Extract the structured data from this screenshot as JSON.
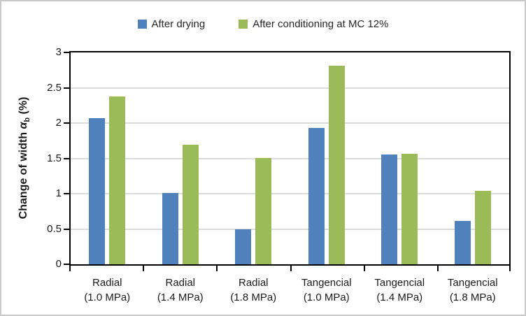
{
  "figure": {
    "background": "#ffffff",
    "border_color": "#c9c9c9"
  },
  "axis": {
    "ylabel_prefix": "Change of width ",
    "ylabel_alpha": "α",
    "ylabel_sub": "b",
    "ylabel_suffix": " (%)"
  },
  "colors": {
    "gridline": "#dcdcdc",
    "axis": "#000000",
    "series_blue": "#4F81BD",
    "series_green": "#9BBB59"
  },
  "chart_data": {
    "type": "bar",
    "title": "",
    "xlabel": "",
    "ylabel": "Change of width α_b (%)",
    "ylim": [
      0,
      3
    ],
    "grid": true,
    "legend_position": "top",
    "ytick_values": [
      0,
      0.5,
      1,
      1.5,
      2,
      2.5,
      3
    ],
    "ytick_labels": [
      "0",
      "0.5",
      "1",
      "1.5",
      "2",
      "2.5",
      "3"
    ],
    "categories": [
      {
        "line1": "Radial",
        "line2": "(1.0 MPa)"
      },
      {
        "line1": "Radial",
        "line2": "(1.4 MPa)"
      },
      {
        "line1": "Radial",
        "line2": "(1.8 MPa)"
      },
      {
        "line1": "Tangencial",
        "line2": "(1.0 MPa)"
      },
      {
        "line1": "Tangencial",
        "line2": "(1.4 MPa)"
      },
      {
        "line1": "Tangencial",
        "line2": "(1.8 MPa)"
      }
    ],
    "series": [
      {
        "name": "After drying",
        "color": "#4F81BD",
        "values": [
          2.07,
          1.01,
          0.5,
          1.93,
          1.55,
          0.61
        ]
      },
      {
        "name": "After conditioning at MC 12%",
        "color": "#9BBB59",
        "values": [
          2.38,
          1.69,
          1.51,
          2.81,
          1.56,
          1.04
        ]
      }
    ]
  }
}
